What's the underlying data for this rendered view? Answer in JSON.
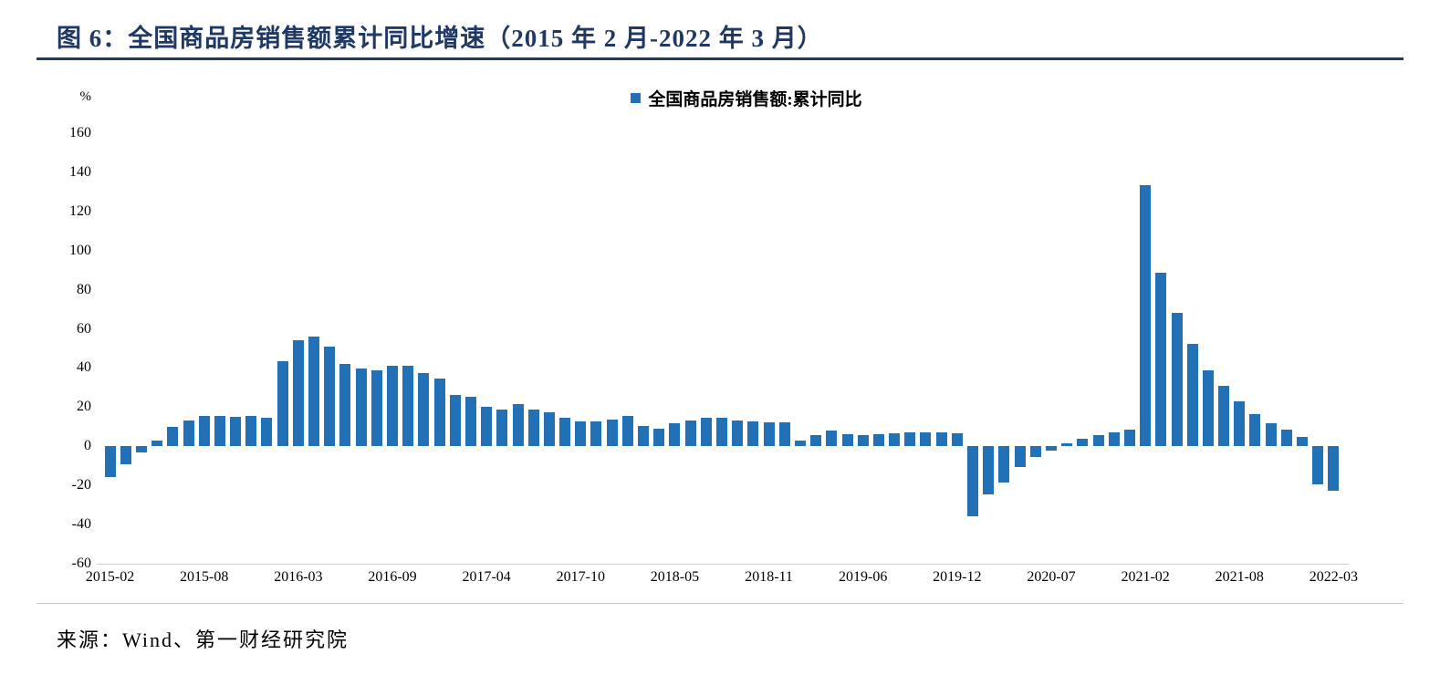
{
  "header": {
    "title": "图 6：全国商品房销售额累计同比增速（2015 年 2 月-2022 年 3 月）"
  },
  "legend": {
    "label": "全国商品房销售额:累计同比"
  },
  "footer": {
    "source": "来源：Wind、第一财经研究院"
  },
  "colors": {
    "bar": "#2271B6",
    "accent": "#1F3864",
    "rule_light": "#C8C8C8"
  },
  "chart_data": {
    "type": "bar",
    "title": "全国商品房销售额累计同比增速（2015年2月-2022年3月）",
    "xlabel": "",
    "ylabel": "%",
    "ylim": [
      -60,
      160
    ],
    "ytick_step": 20,
    "grid": false,
    "legend_position": "top-center",
    "legend_entries": [
      "全国商品房销售额:累计同比"
    ],
    "categories": [
      "2015-02",
      "2015-03",
      "2015-04",
      "2015-05",
      "2015-06",
      "2015-07",
      "2015-08",
      "2015-09",
      "2015-10",
      "2015-11",
      "2015-12",
      "2016-02",
      "2016-03",
      "2016-04",
      "2016-05",
      "2016-06",
      "2016-07",
      "2016-08",
      "2016-09",
      "2016-10",
      "2016-11",
      "2016-12",
      "2017-02",
      "2017-03",
      "2017-04",
      "2017-05",
      "2017-06",
      "2017-07",
      "2017-08",
      "2017-09",
      "2017-10",
      "2017-11",
      "2017-12",
      "2018-02",
      "2018-03",
      "2018-04",
      "2018-05",
      "2018-06",
      "2018-07",
      "2018-08",
      "2018-09",
      "2018-10",
      "2018-11",
      "2018-12",
      "2019-02",
      "2019-03",
      "2019-04",
      "2019-05",
      "2019-06",
      "2019-07",
      "2019-08",
      "2019-09",
      "2019-10",
      "2019-11",
      "2019-12",
      "2020-02",
      "2020-03",
      "2020-04",
      "2020-05",
      "2020-06",
      "2020-07",
      "2020-08",
      "2020-09",
      "2020-10",
      "2020-11",
      "2020-12",
      "2021-02",
      "2021-03",
      "2021-04",
      "2021-05",
      "2021-06",
      "2021-07",
      "2021-08",
      "2021-09",
      "2021-10",
      "2021-11",
      "2021-12",
      "2022-02",
      "2022-03"
    ],
    "values": [
      -15.8,
      -9.3,
      -3.1,
      3.1,
      10.0,
      13.4,
      15.3,
      15.3,
      14.9,
      15.6,
      14.4,
      43.6,
      54.1,
      55.9,
      50.7,
      42.1,
      39.8,
      38.7,
      41.3,
      41.2,
      37.5,
      34.8,
      26.0,
      25.1,
      20.1,
      18.6,
      21.5,
      18.9,
      17.2,
      14.6,
      12.6,
      12.7,
      13.7,
      15.3,
      10.4,
      9.0,
      11.8,
      13.2,
      14.4,
      14.5,
      13.3,
      12.5,
      12.1,
      12.2,
      2.8,
      5.6,
      8.1,
      6.1,
      5.6,
      6.2,
      6.7,
      7.1,
      7.3,
      7.3,
      6.5,
      -35.9,
      -24.7,
      -18.6,
      -10.6,
      -5.4,
      -2.1,
      1.6,
      3.7,
      5.8,
      7.2,
      8.7,
      133.4,
      88.5,
      68.2,
      52.4,
      38.9,
      30.7,
      22.8,
      16.6,
      11.8,
      8.5,
      4.8,
      -19.3,
      -22.7
    ],
    "xtick_labels": [
      "2015-02",
      "2015-08",
      "2016-03",
      "2016-09",
      "2017-04",
      "2017-10",
      "2018-05",
      "2018-11",
      "2019-06",
      "2019-12",
      "2020-07",
      "2021-02",
      "2021-08",
      "2022-03"
    ],
    "xtick_every": 6
  }
}
